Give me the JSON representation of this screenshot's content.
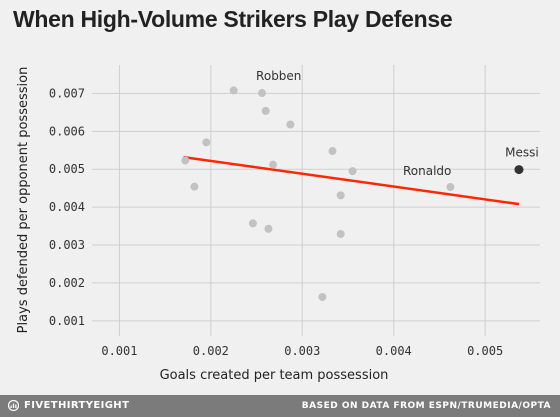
{
  "chart_data": {
    "type": "scatter",
    "title": "When High-Volume Strikers Play Defense",
    "xlabel": "Goals created per team possession",
    "ylabel": "Plays defended per opponent possession",
    "xlim": [
      0.0007,
      0.0056
    ],
    "ylim": [
      0.0006,
      0.00775
    ],
    "xticks": [
      0.001,
      0.002,
      0.003,
      0.004,
      0.005
    ],
    "yticks": [
      0.001,
      0.002,
      0.003,
      0.004,
      0.005,
      0.006,
      0.007
    ],
    "xtick_labels": [
      "0.001",
      "0.002",
      "0.003",
      "0.004",
      "0.005"
    ],
    "ytick_labels": [
      "0.001",
      "0.002",
      "0.003",
      "0.004",
      "0.005",
      "0.006",
      "0.007"
    ],
    "grid": true,
    "points": [
      {
        "x": 0.00225,
        "y": 0.00708,
        "label": "",
        "highlight": false
      },
      {
        "x": 0.00256,
        "y": 0.00701,
        "label": "Robben",
        "highlight": false
      },
      {
        "x": 0.0026,
        "y": 0.00654,
        "label": "",
        "highlight": false
      },
      {
        "x": 0.00287,
        "y": 0.00618,
        "label": "",
        "highlight": false
      },
      {
        "x": 0.00195,
        "y": 0.00571,
        "label": "",
        "highlight": false
      },
      {
        "x": 0.00172,
        "y": 0.00523,
        "label": "",
        "highlight": false
      },
      {
        "x": 0.00268,
        "y": 0.00512,
        "label": "",
        "highlight": false
      },
      {
        "x": 0.00333,
        "y": 0.00548,
        "label": "",
        "highlight": false
      },
      {
        "x": 0.00355,
        "y": 0.00495,
        "label": "",
        "highlight": false
      },
      {
        "x": 0.00182,
        "y": 0.00454,
        "label": "",
        "highlight": false
      },
      {
        "x": 0.00342,
        "y": 0.00431,
        "label": "",
        "highlight": false
      },
      {
        "x": 0.00462,
        "y": 0.00453,
        "label": "Ronaldo",
        "highlight": false
      },
      {
        "x": 0.00537,
        "y": 0.00499,
        "label": "Messi",
        "highlight": true
      },
      {
        "x": 0.00246,
        "y": 0.00357,
        "label": "",
        "highlight": false
      },
      {
        "x": 0.00263,
        "y": 0.00343,
        "label": "",
        "highlight": false
      },
      {
        "x": 0.00342,
        "y": 0.00329,
        "label": "",
        "highlight": false
      },
      {
        "x": 0.00322,
        "y": 0.00163,
        "label": "",
        "highlight": false
      }
    ],
    "trendline": {
      "x": [
        0.0017,
        0.00537
      ],
      "y": [
        0.00532,
        0.00408
      ]
    },
    "colors": {
      "point": "#c2c2c2",
      "highlight": "#333333",
      "trend": "#ff2700",
      "grid": "#cfcfcf"
    }
  },
  "footer": {
    "brand": "FIVETHIRTYEIGHT",
    "brand_icon": "fivethirtyeight-logo-icon",
    "source": "BASED ON DATA FROM ESPN/TRUMEDIA/OPTA"
  }
}
